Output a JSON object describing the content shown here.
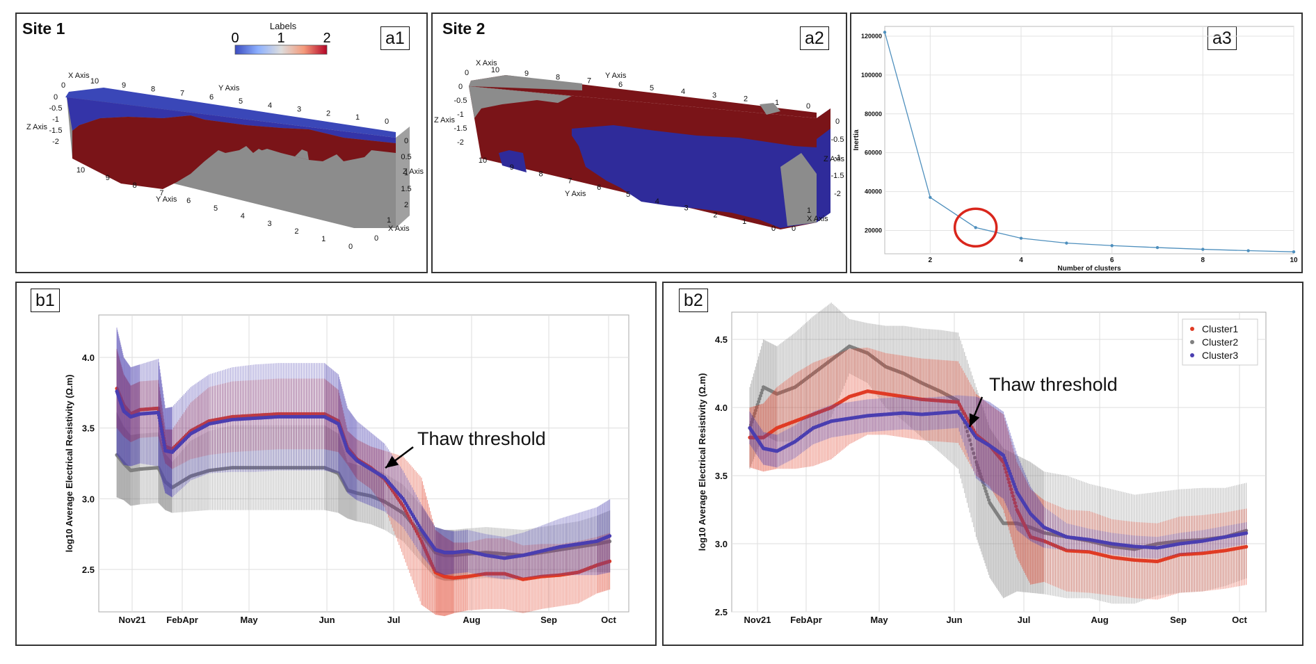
{
  "panels": {
    "a1": {
      "tag": "a1",
      "site": "Site 1",
      "colorbar": {
        "title": "Labels",
        "ticks": [
          "0",
          "1",
          "2"
        ],
        "colors": [
          "#3b4cc0",
          "#dddddd",
          "#b40426"
        ]
      },
      "axes": {
        "x": "X Axis",
        "y": "Y Axis",
        "z": "Z Axis"
      },
      "x_ticks": [
        "10",
        "9",
        "8",
        "7",
        "6",
        "5",
        "4",
        "3",
        "2",
        "1",
        "0"
      ],
      "y_ticks_top": [
        "0",
        "1"
      ],
      "z_ticks": [
        "0",
        "-0.5",
        "-1",
        "-1.5",
        "-2"
      ],
      "right_ticks": [
        "0",
        "0.5",
        "1",
        "1.5",
        "2"
      ],
      "right_x_ticks": [
        "1",
        "0"
      ],
      "bottom_ticks": [
        "10",
        "9",
        "8",
        "7",
        "6",
        "5",
        "4",
        "3",
        "2",
        "1",
        "0"
      ],
      "back_ticks": [
        "10",
        "9",
        "8",
        "7",
        "6",
        "5",
        "4",
        "3",
        "2",
        "1",
        "0"
      ]
    },
    "a2": {
      "tag": "a2",
      "site": "Site 2",
      "axes": {
        "x": "X Axis",
        "y": "Y Axis",
        "z": "Z Axis"
      },
      "top_ticks": [
        "10",
        "9",
        "8",
        "7",
        "6",
        "5",
        "4",
        "3",
        "2",
        "1",
        "0"
      ],
      "z_ticks": [
        "0",
        "-0.5",
        "-1",
        "-1.5",
        "-2"
      ],
      "right_ticks": [
        "0",
        "-0.5",
        "-1",
        "-1.5",
        "-2"
      ],
      "bottom_ticks": [
        "10",
        "9",
        "8",
        "7",
        "6",
        "5",
        "4",
        "3",
        "2",
        "1",
        "0"
      ],
      "x_ticks_top": [
        "0",
        "1"
      ],
      "right_x_ticks": [
        "1",
        "0"
      ]
    },
    "a3": {
      "tag": "a3"
    },
    "b1": {
      "tag": "b1",
      "annotation": "Thaw threshold"
    },
    "b2": {
      "tag": "b2",
      "annotation": "Thaw threshold"
    }
  },
  "chart_data": [
    {
      "id": "a3",
      "type": "line",
      "x": [
        1,
        2,
        3,
        4,
        5,
        6,
        7,
        8,
        9,
        10
      ],
      "y": [
        122000,
        37000,
        21500,
        16000,
        13500,
        12200,
        11200,
        10300,
        9600,
        9000
      ],
      "xlabel": "Number of clusters",
      "ylabel": "Inertia",
      "xlim": [
        1,
        10
      ],
      "ylim": [
        8000,
        125000
      ],
      "xticks": [
        "2",
        "4",
        "6",
        "8",
        "10"
      ],
      "yticks": [
        "20000",
        "40000",
        "60000",
        "80000",
        "100000",
        "120000"
      ],
      "highlight_x": 3,
      "color": "#4e8fbd",
      "grid": true
    },
    {
      "id": "b1",
      "type": "scatter",
      "ylabel": "log10 Average Electrical Resistivity (Ω.m)",
      "ylim": [
        2.2,
        4.3
      ],
      "xticks": [
        "Nov21",
        "FebApr",
        "May",
        "Jun",
        "Jul",
        "Aug",
        "Sep",
        "Oct"
      ],
      "yticks": [
        "2.5",
        "3.0",
        "3.5",
        "4.0"
      ],
      "grid": true,
      "series": [
        {
          "name": "Cluster1",
          "color": "#e03b24",
          "x": [
            0,
            0.15,
            0.3,
            0.5,
            0.9,
            1.05,
            1.2,
            1.6,
            2.0,
            2.5,
            3.0,
            3.5,
            4.0,
            4.5,
            4.8,
            5.0,
            5.2,
            5.5,
            5.8,
            6.2,
            6.6,
            6.9,
            7.1,
            7.3,
            7.6,
            8.0,
            8.4,
            8.8,
            9.2,
            9.6,
            10.0,
            10.4,
            10.7
          ],
          "y": [
            3.78,
            3.66,
            3.6,
            3.63,
            3.64,
            3.37,
            3.35,
            3.48,
            3.55,
            3.58,
            3.59,
            3.6,
            3.6,
            3.6,
            3.55,
            3.36,
            3.28,
            3.22,
            3.14,
            2.95,
            2.7,
            2.48,
            2.45,
            2.44,
            2.45,
            2.47,
            2.47,
            2.43,
            2.45,
            2.46,
            2.48,
            2.53,
            2.56
          ],
          "spread": [
            0.28,
            0.22,
            0.2,
            0.2,
            0.2,
            0.12,
            0.14,
            0.2,
            0.24,
            0.25,
            0.25,
            0.25,
            0.25,
            0.25,
            0.22,
            0.12,
            0.14,
            0.15,
            0.2,
            0.35,
            0.45,
            0.3,
            0.28,
            0.25,
            0.24,
            0.25,
            0.25,
            0.24,
            0.23,
            0.22,
            0.22,
            0.2,
            0.2
          ]
        },
        {
          "name": "Cluster2",
          "color": "#808080",
          "x": [
            0,
            0.15,
            0.3,
            0.5,
            0.9,
            1.05,
            1.2,
            1.6,
            2.0,
            2.5,
            3.0,
            3.5,
            4.0,
            4.5,
            4.8,
            5.0,
            5.2,
            5.5,
            5.8,
            6.2,
            6.6,
            6.9,
            7.1,
            7.3,
            7.6,
            8.0,
            8.4,
            8.8,
            9.2,
            9.6,
            10.0,
            10.4,
            10.7
          ],
          "y": [
            3.31,
            3.25,
            3.2,
            3.21,
            3.22,
            3.12,
            3.08,
            3.16,
            3.2,
            3.22,
            3.22,
            3.22,
            3.22,
            3.22,
            3.18,
            3.06,
            3.04,
            3.02,
            2.98,
            2.9,
            2.75,
            2.62,
            2.6,
            2.6,
            2.61,
            2.62,
            2.61,
            2.6,
            2.62,
            2.64,
            2.66,
            2.68,
            2.7
          ],
          "spread": [
            0.3,
            0.26,
            0.25,
            0.25,
            0.25,
            0.2,
            0.18,
            0.25,
            0.28,
            0.3,
            0.3,
            0.3,
            0.3,
            0.3,
            0.28,
            0.2,
            0.2,
            0.2,
            0.2,
            0.2,
            0.2,
            0.18,
            0.18,
            0.18,
            0.18,
            0.18,
            0.18,
            0.18,
            0.18,
            0.18,
            0.18,
            0.2,
            0.22
          ]
        },
        {
          "name": "Cluster3",
          "color": "#4a3eb0",
          "x": [
            0,
            0.15,
            0.3,
            0.5,
            0.9,
            1.05,
            1.2,
            1.6,
            2.0,
            2.5,
            3.0,
            3.5,
            4.0,
            4.5,
            4.8,
            5.0,
            5.2,
            5.5,
            5.8,
            6.2,
            6.6,
            6.9,
            7.1,
            7.3,
            7.6,
            8.0,
            8.4,
            8.8,
            9.2,
            9.6,
            10.0,
            10.4,
            10.7
          ],
          "y": [
            3.76,
            3.62,
            3.58,
            3.6,
            3.61,
            3.34,
            3.33,
            3.46,
            3.53,
            3.56,
            3.57,
            3.58,
            3.58,
            3.58,
            3.53,
            3.34,
            3.27,
            3.21,
            3.15,
            3.0,
            2.78,
            2.64,
            2.62,
            2.62,
            2.63,
            2.6,
            2.58,
            2.6,
            2.63,
            2.66,
            2.68,
            2.7,
            2.74
          ],
          "spread": [
            0.45,
            0.38,
            0.35,
            0.35,
            0.38,
            0.3,
            0.32,
            0.33,
            0.35,
            0.37,
            0.38,
            0.38,
            0.38,
            0.38,
            0.35,
            0.3,
            0.28,
            0.26,
            0.24,
            0.2,
            0.18,
            0.16,
            0.16,
            0.15,
            0.15,
            0.15,
            0.15,
            0.16,
            0.18,
            0.2,
            0.22,
            0.24,
            0.26
          ]
        }
      ]
    },
    {
      "id": "b2",
      "type": "scatter",
      "ylabel": "log10 Average Electrical Resistivity (Ω.m)",
      "ylim": [
        2.5,
        4.7
      ],
      "xticks": [
        "Nov21",
        "FebApr",
        "May",
        "Jun",
        "Jul",
        "Aug",
        "Sep",
        "Oct"
      ],
      "yticks": [
        "2.5",
        "3.0",
        "3.5",
        "4.0",
        "4.5"
      ],
      "grid": true,
      "legend": {
        "position": "top-right",
        "entries": [
          "Cluster1",
          "Cluster2",
          "Cluster3"
        ]
      },
      "series": [
        {
          "name": "Cluster1",
          "color": "#e03b24",
          "x": [
            0,
            0.3,
            0.6,
            1.0,
            1.4,
            1.8,
            2.2,
            2.6,
            3.0,
            3.4,
            3.8,
            4.2,
            4.6,
            5.0,
            5.3,
            5.6,
            5.9,
            6.2,
            6.5,
            7.0,
            7.5,
            8.0,
            8.5,
            9.0,
            9.5,
            10.0,
            10.5,
            11.0
          ],
          "y": [
            3.78,
            3.78,
            3.85,
            3.9,
            3.95,
            4.0,
            4.08,
            4.12,
            4.1,
            4.08,
            4.06,
            4.05,
            4.04,
            3.8,
            3.72,
            3.6,
            3.25,
            3.05,
            3.02,
            2.95,
            2.94,
            2.9,
            2.88,
            2.87,
            2.92,
            2.93,
            2.95,
            2.98
          ],
          "spread": [
            0.22,
            0.25,
            0.3,
            0.35,
            0.38,
            0.38,
            0.35,
            0.32,
            0.3,
            0.3,
            0.3,
            0.3,
            0.3,
            0.3,
            0.3,
            0.35,
            0.35,
            0.35,
            0.3,
            0.3,
            0.3,
            0.28,
            0.28,
            0.28,
            0.28,
            0.28,
            0.28,
            0.28
          ]
        },
        {
          "name": "Cluster2",
          "color": "#808080",
          "x": [
            0,
            0.3,
            0.6,
            1.0,
            1.4,
            1.8,
            2.2,
            2.6,
            3.0,
            3.4,
            3.8,
            4.2,
            4.6,
            5.0,
            5.3,
            5.6,
            5.9,
            6.2,
            6.5,
            7.0,
            7.5,
            8.0,
            8.5,
            9.0,
            9.5,
            10.0,
            10.5,
            11.0
          ],
          "y": [
            3.85,
            4.15,
            4.1,
            4.15,
            4.25,
            4.35,
            4.45,
            4.4,
            4.3,
            4.25,
            4.18,
            4.12,
            4.05,
            3.6,
            3.3,
            3.15,
            3.15,
            3.12,
            3.08,
            3.05,
            3.02,
            2.98,
            2.96,
            3.0,
            3.02,
            3.03,
            3.05,
            3.1
          ],
          "spread": [
            0.3,
            0.35,
            0.35,
            0.4,
            0.42,
            0.42,
            0.2,
            0.22,
            0.3,
            0.35,
            0.4,
            0.45,
            0.5,
            0.55,
            0.55,
            0.55,
            0.5,
            0.48,
            0.45,
            0.45,
            0.42,
            0.42,
            0.4,
            0.38,
            0.38,
            0.38,
            0.36,
            0.35
          ]
        },
        {
          "name": "Cluster3",
          "color": "#4a3eb0",
          "x": [
            0,
            0.3,
            0.6,
            1.0,
            1.4,
            1.8,
            2.2,
            2.6,
            3.0,
            3.4,
            3.8,
            4.2,
            4.6,
            5.0,
            5.3,
            5.6,
            5.9,
            6.2,
            6.5,
            7.0,
            7.5,
            8.0,
            8.5,
            9.0,
            9.5,
            10.0,
            10.5,
            11.0
          ],
          "y": [
            3.85,
            3.7,
            3.68,
            3.75,
            3.85,
            3.9,
            3.92,
            3.94,
            3.95,
            3.96,
            3.95,
            3.96,
            3.97,
            3.78,
            3.72,
            3.65,
            3.38,
            3.22,
            3.12,
            3.05,
            3.03,
            3.0,
            2.98,
            2.97,
            3.0,
            3.02,
            3.05,
            3.08
          ],
          "spread": [
            0.12,
            0.12,
            0.12,
            0.12,
            0.12,
            0.12,
            0.12,
            0.12,
            0.12,
            0.12,
            0.12,
            0.12,
            0.12,
            0.3,
            0.32,
            0.32,
            0.28,
            0.2,
            0.15,
            0.1,
            0.08,
            0.08,
            0.08,
            0.08,
            0.08,
            0.08,
            0.08,
            0.08
          ]
        }
      ]
    }
  ]
}
